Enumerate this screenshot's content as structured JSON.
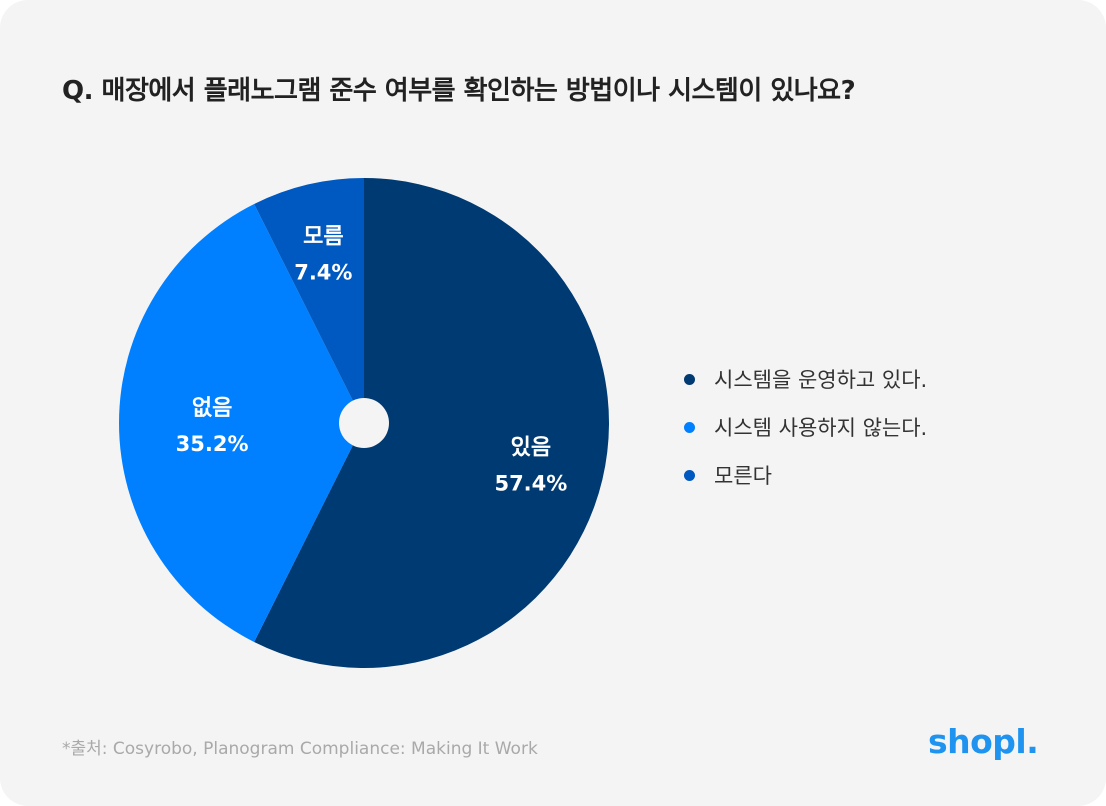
{
  "title": "Q. 매장에서 플래노그램 준수 여부를 확인하는 방법이나 시스템이 있나요?",
  "chart_data": {
    "type": "pie",
    "title": "Q. 매장에서 플래노그램 준수 여부를 확인하는 방법이나 시스템이 있나요?",
    "slices": [
      {
        "label": "있음",
        "value": 57.4,
        "value_label": "57.4%",
        "color": "#003a72",
        "legend": "시스템을 운영하고 있다."
      },
      {
        "label": "없음",
        "value": 35.2,
        "value_label": "35.2%",
        "color": "#0080ff",
        "legend": "시스템 사용하지 않는다."
      },
      {
        "label": "모름",
        "value": 7.4,
        "value_label": "7.4%",
        "color": "#0058c1",
        "legend": "모른다"
      }
    ],
    "legend_position": "right"
  },
  "source": "*출처: Cosyrobo, Planogram Compliance: Making It Work",
  "logo": "shopl."
}
